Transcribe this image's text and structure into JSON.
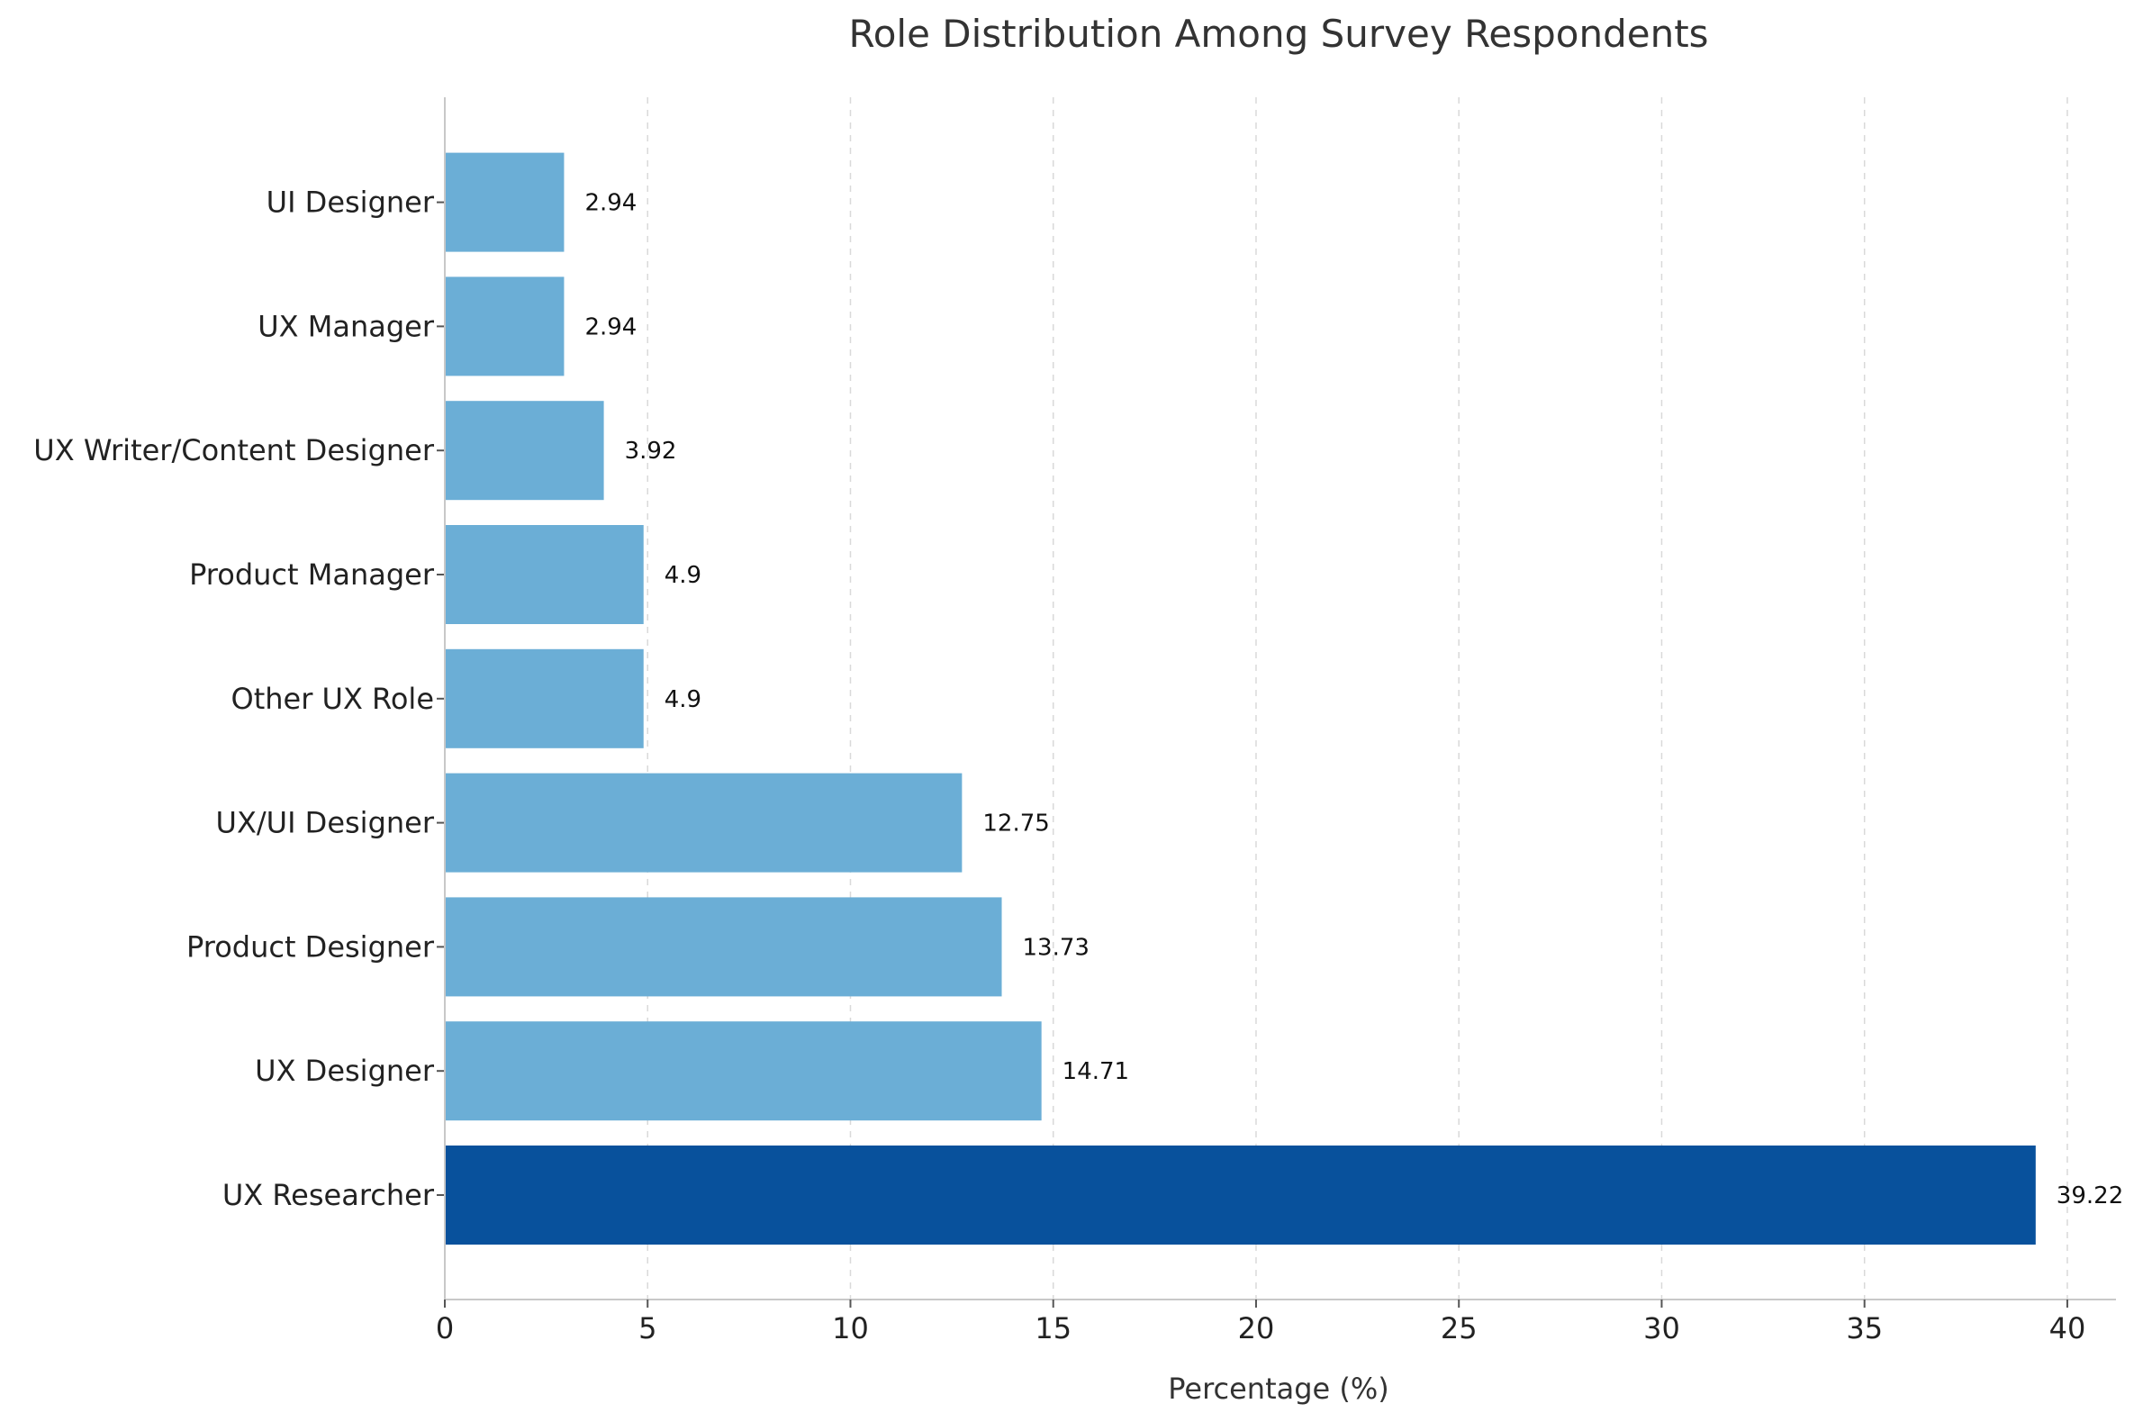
{
  "chart_data": {
    "type": "bar",
    "orientation": "horizontal",
    "title": "Role Distribution Among Survey Respondents",
    "xlabel": "Percentage (%)",
    "ylabel": "",
    "xlim": [
      0,
      41.2
    ],
    "xticks": [
      0,
      5,
      10,
      15,
      20,
      25,
      30,
      35,
      40
    ],
    "grid": "x-dashed",
    "categories": [
      "UX Researcher",
      "UX Designer",
      "Product Designer",
      "UX/UI Designer",
      "Other UX Role",
      "Product Manager",
      "UX Writer/Content Designer",
      "UX Manager",
      "UI Designer"
    ],
    "values": [
      39.22,
      14.71,
      13.73,
      12.75,
      4.9,
      4.9,
      3.92,
      2.94,
      2.94
    ],
    "value_labels": [
      "39.22",
      "14.71",
      "13.73",
      "12.75",
      "4.9",
      "4.9",
      "3.92",
      "2.94",
      "2.94"
    ],
    "highlight_index": 0,
    "colors": {
      "bar": "#6baed6",
      "highlight": "#08519c"
    }
  }
}
